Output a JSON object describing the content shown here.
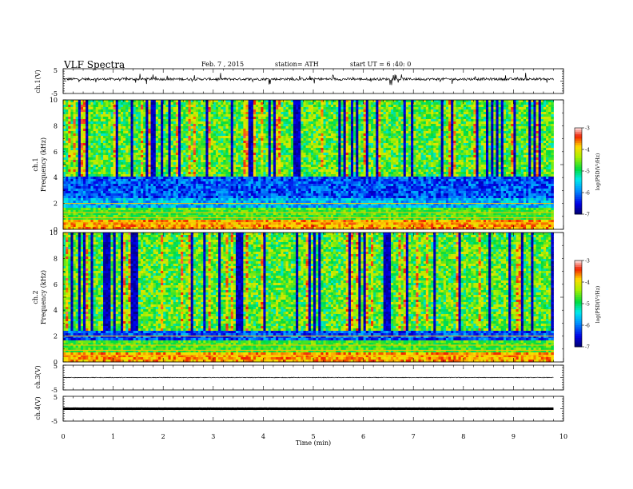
{
  "header": {
    "title": "VLF  Spectra",
    "date": "Feb. 7  , 2015",
    "station": "station= ATH",
    "start": "start  UT =   6 :40: 0"
  },
  "chart_data": [
    {
      "id": "ch1-waveform",
      "type": "line",
      "ylabel": "ch.1(V)",
      "ylim": [
        -5,
        5
      ],
      "yticks": [
        5,
        -5
      ],
      "xlim": [
        0,
        10
      ],
      "series": [
        {
          "baseline": 0.8,
          "noise_amplitude": 1.0,
          "color": "#000000"
        }
      ],
      "x_end": 9.8
    },
    {
      "id": "ch1-spectrogram",
      "type": "heatmap",
      "ylabel_channel": "ch.1",
      "ylabel": "Frequency  (kHz)",
      "ylim": [
        0,
        10
      ],
      "yticks": [
        0,
        2,
        4,
        6,
        8,
        10
      ],
      "xlim": [
        0,
        10
      ],
      "x_end": 9.8,
      "noise_floor_khz": 4,
      "colorbar": {
        "label": "log(PSD(V²/Hz)",
        "range": [
          -7,
          -3
        ],
        "ticks": [
          -3,
          -4,
          -5,
          -6,
          -7
        ]
      }
    },
    {
      "id": "ch2-spectrogram",
      "type": "heatmap",
      "ylabel_channel": "ch.2",
      "ylabel": "Frequency  (kHz)",
      "ylim": [
        0,
        10
      ],
      "yticks": [
        0,
        2,
        4,
        6,
        8,
        10
      ],
      "xlim": [
        0,
        10
      ],
      "x_end": 9.8,
      "noise_floor_khz": 2.5,
      "colorbar": {
        "label": "log(PSD(V²/Hz)",
        "range": [
          -7,
          -3
        ],
        "ticks": [
          -3,
          -4,
          -5,
          -6,
          -7
        ]
      }
    },
    {
      "id": "ch3-waveform",
      "type": "line",
      "ylabel": "ch.3(V)",
      "ylim": [
        -5,
        5
      ],
      "yticks": [
        5,
        -5
      ],
      "xlim": [
        0,
        10
      ],
      "series": [
        {
          "baseline": 0.0,
          "noise_amplitude": 0.25,
          "color": "#000000"
        }
      ],
      "x_end": 9.8
    },
    {
      "id": "ch4-waveform",
      "type": "line",
      "ylabel": "ch.4(V)",
      "ylim": [
        -5,
        5
      ],
      "yticks": [
        5,
        -5
      ],
      "xlim": [
        0,
        10
      ],
      "series": [
        {
          "baseline": 0.0,
          "noise_amplitude": 0.05,
          "color": "#000000"
        }
      ],
      "x_end": 9.8
    }
  ],
  "xaxis": {
    "label": "Time  (min)",
    "ticks": [
      0,
      1,
      2,
      3,
      4,
      5,
      6,
      7,
      8,
      9,
      10
    ]
  }
}
